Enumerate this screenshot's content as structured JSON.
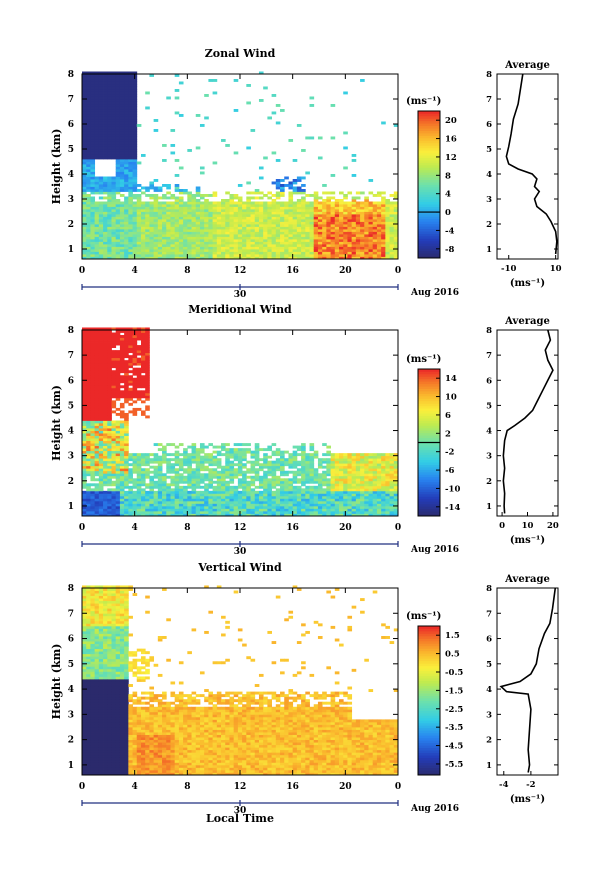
{
  "figure": {
    "shared_xlabel": "Local Time",
    "date_label": "Aug 2016",
    "date_tick": "30",
    "unit_label": "(ms⁻¹)",
    "ylabel": "Height (km)",
    "avg_title": "Average"
  },
  "chart_data": [
    {
      "type": "heatmap",
      "title": "Zonal Wind",
      "xlabel": "Local Time",
      "ylabel": "Height (km)",
      "x_ticks": [
        "0",
        "4",
        "8",
        "12",
        "16",
        "20",
        "0"
      ],
      "y_ticks": [
        "1",
        "2",
        "3",
        "4",
        "5",
        "6",
        "7",
        "8"
      ],
      "xlim": [
        0,
        24
      ],
      "ylim": [
        0.6,
        8
      ],
      "colorbar": {
        "label": "(ms⁻¹)",
        "min": -10,
        "max": 22,
        "ticks": [
          20,
          16,
          12,
          8,
          4,
          0,
          -4,
          -8
        ],
        "contour_level": 0
      },
      "average_profile": {
        "title": "Average",
        "xlabel": "(ms⁻¹)",
        "x_ticks": [
          -10,
          10
        ],
        "xlim": [
          -15,
          11
        ],
        "points": [
          [
            -4,
            8
          ],
          [
            -5,
            7.4
          ],
          [
            -6,
            6.8
          ],
          [
            -8,
            6.2
          ],
          [
            -9,
            5.6
          ],
          [
            -10,
            5.1
          ],
          [
            -11,
            4.7
          ],
          [
            -10,
            4.4
          ],
          [
            -6,
            4.2
          ],
          [
            0,
            4.0
          ],
          [
            2,
            3.8
          ],
          [
            1,
            3.5
          ],
          [
            3,
            3.3
          ],
          [
            1,
            3.0
          ],
          [
            2,
            2.7
          ],
          [
            6,
            2.4
          ],
          [
            8,
            2.1
          ],
          [
            10,
            1.7
          ],
          [
            10.5,
            1.3
          ],
          [
            10,
            0.8
          ]
        ]
      }
    },
    {
      "type": "heatmap",
      "title": "Meridional Wind",
      "xlabel": "Local Time",
      "ylabel": "Height (km)",
      "x_ticks": [
        "0",
        "4",
        "8",
        "12",
        "16",
        "20",
        "0"
      ],
      "y_ticks": [
        "1",
        "2",
        "3",
        "4",
        "5",
        "6",
        "7",
        "8"
      ],
      "xlim": [
        0,
        24
      ],
      "ylim": [
        0.6,
        8
      ],
      "colorbar": {
        "label": "(ms⁻¹)",
        "min": -16,
        "max": 16,
        "ticks": [
          14,
          10,
          6,
          2,
          -2,
          -6,
          -10,
          -14
        ],
        "contour_level": 0
      },
      "average_profile": {
        "title": "Average",
        "xlabel": "(ms⁻¹)",
        "x_ticks": [
          0,
          10,
          20
        ],
        "xlim": [
          -2,
          22
        ],
        "points": [
          [
            18,
            8
          ],
          [
            19,
            7.6
          ],
          [
            17,
            7.2
          ],
          [
            18,
            6.8
          ],
          [
            20,
            6.4
          ],
          [
            18,
            6.0
          ],
          [
            16,
            5.6
          ],
          [
            14,
            5.2
          ],
          [
            12,
            4.8
          ],
          [
            9,
            4.5
          ],
          [
            5,
            4.2
          ],
          [
            2,
            4.0
          ],
          [
            1,
            3.6
          ],
          [
            0.5,
            3.0
          ],
          [
            1,
            2.5
          ],
          [
            0.5,
            2.0
          ],
          [
            1,
            1.5
          ],
          [
            0.8,
            1.0
          ],
          [
            1,
            0.7
          ]
        ]
      }
    },
    {
      "type": "heatmap",
      "title": "Vertical Wind",
      "xlabel": "Local Time",
      "ylabel": "Height (km)",
      "x_ticks": [
        "0",
        "4",
        "8",
        "12",
        "16",
        "20",
        "0"
      ],
      "y_ticks": [
        "1",
        "2",
        "3",
        "4",
        "5",
        "6",
        "7",
        "8"
      ],
      "xlim": [
        0,
        24
      ],
      "ylim": [
        0.6,
        8
      ],
      "colorbar": {
        "label": "(ms⁻¹)",
        "min": -6.1,
        "max": 2.0,
        "ticks": [
          1.5,
          0.5,
          -0.5,
          -1.5,
          -2.5,
          -3.5,
          -4.5,
          -5.5
        ],
        "contour_level": null
      },
      "average_profile": {
        "title": "Average",
        "xlabel": "(ms⁻¹)",
        "x_ticks": [
          -4,
          -2
        ],
        "xlim": [
          -4.5,
          0
        ],
        "points": [
          [
            -0.2,
            8
          ],
          [
            -0.4,
            7.2
          ],
          [
            -0.6,
            6.6
          ],
          [
            -1.0,
            6.2
          ],
          [
            -1.4,
            5.6
          ],
          [
            -1.6,
            5.0
          ],
          [
            -2.0,
            4.6
          ],
          [
            -2.8,
            4.3
          ],
          [
            -4.2,
            4.1
          ],
          [
            -3.8,
            3.9
          ],
          [
            -2.2,
            3.8
          ],
          [
            -2.0,
            3.2
          ],
          [
            -2.1,
            2.4
          ],
          [
            -2.2,
            1.6
          ],
          [
            -2.1,
            1.0
          ],
          [
            -2.2,
            0.7
          ]
        ]
      }
    }
  ]
}
